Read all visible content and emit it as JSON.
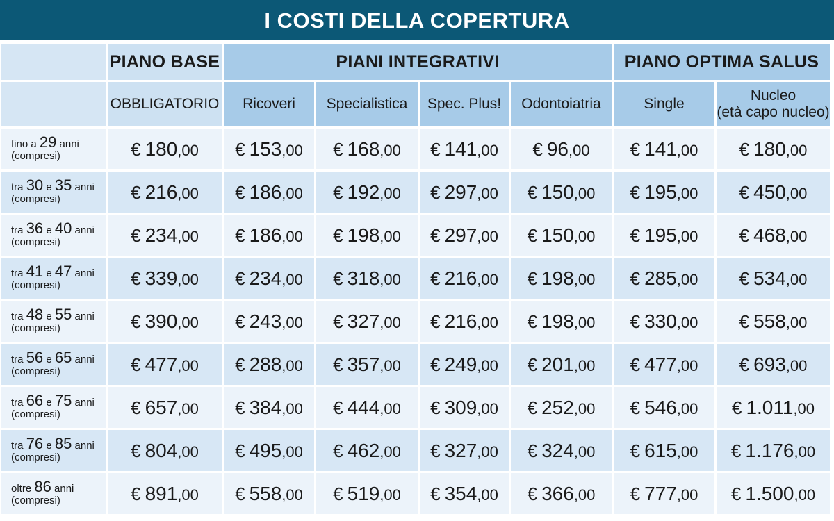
{
  "title": "I COSTI DELLA COPERTURA",
  "groups": {
    "base": "PIANO BASE",
    "integrativi": "PIANI INTEGRATIVI",
    "optima": "PIANO OPTIMA SALUS"
  },
  "subheaders": {
    "obbligatorio": "OBBLIGATORIO",
    "ricoveri": "Ricoveri",
    "specialistica": "Specialistica",
    "spec_plus": "Spec. Plus!",
    "odontoiatria": "Odontoiatria",
    "single": "Single",
    "nucleo_line1": "Nucleo",
    "nucleo_line2": "(età capo nucleo)"
  },
  "currency": "€",
  "decimals": ",00",
  "rows": [
    {
      "pre": "fino a",
      "from": "29",
      "mid": "",
      "to": "",
      "unit": "anni",
      "note": "(compresi)",
      "values": [
        "180",
        "153",
        "168",
        "141",
        "96",
        "141",
        "180"
      ]
    },
    {
      "pre": "tra",
      "from": "30",
      "mid": "e",
      "to": "35",
      "unit": "anni",
      "note": "(compresi)",
      "values": [
        "216",
        "186",
        "192",
        "297",
        "150",
        "195",
        "450"
      ]
    },
    {
      "pre": "tra",
      "from": "36",
      "mid": "e",
      "to": "40",
      "unit": "anni",
      "note": "(compresi)",
      "values": [
        "234",
        "186",
        "198",
        "297",
        "150",
        "195",
        "468"
      ]
    },
    {
      "pre": "tra",
      "from": "41",
      "mid": "e",
      "to": "47",
      "unit": "anni",
      "note": "(compresi)",
      "values": [
        "339",
        "234",
        "318",
        "216",
        "198",
        "285",
        "534"
      ]
    },
    {
      "pre": "tra",
      "from": "48",
      "mid": "e",
      "to": "55",
      "unit": "anni",
      "note": "(compresi)",
      "values": [
        "390",
        "243",
        "327",
        "216",
        "198",
        "330",
        "558"
      ]
    },
    {
      "pre": "tra",
      "from": "56",
      "mid": "e",
      "to": "65",
      "unit": "anni",
      "note": "(compresi)",
      "values": [
        "477",
        "288",
        "357",
        "249",
        "201",
        "477",
        "693"
      ]
    },
    {
      "pre": "tra",
      "from": "66",
      "mid": "e",
      "to": "75",
      "unit": "anni",
      "note": "(compresi)",
      "values": [
        "657",
        "384",
        "444",
        "309",
        "252",
        "546",
        "1.011"
      ]
    },
    {
      "pre": "tra",
      "from": "76",
      "mid": "e",
      "to": "85",
      "unit": "anni",
      "note": "(compresi)",
      "values": [
        "804",
        "495",
        "462",
        "327",
        "324",
        "615",
        "1.176"
      ]
    },
    {
      "pre": "oltre",
      "from": "86",
      "mid": "",
      "to": "",
      "unit": "anni",
      "note": "(compresi)",
      "values": [
        "891",
        "558",
        "519",
        "354",
        "366",
        "777",
        "1.500"
      ]
    }
  ]
}
